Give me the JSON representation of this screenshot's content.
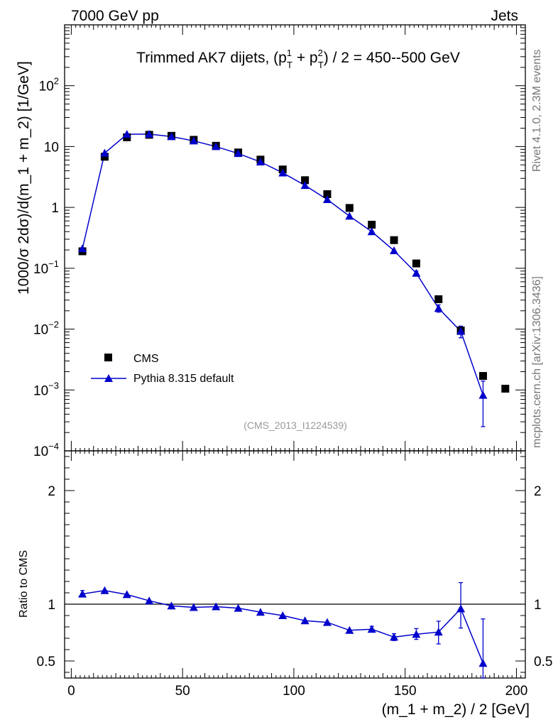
{
  "header": {
    "left": "7000 GeV pp",
    "right": "Jets"
  },
  "side_labels": {
    "rivet": "Rivet 4.1.0,  2.3M events",
    "mcplots": "mcplots.cern.ch [arXiv:1306.3436]"
  },
  "chart_data": [
    {
      "type": "scatter",
      "panel": "main",
      "title_prefix": "Trimmed AK7 dijets, (p",
      "title_middle": " + p",
      "title_suffix": ") / 2 = 450--500 GeV",
      "title_sup1": "1",
      "title_sup2": "2",
      "title_sub": "T",
      "ylabel": "1000/σ  2dσ)/d(m_1 + m_2) [1/GeV]",
      "xlabel": "",
      "yscale": "log",
      "ylim": [
        0.0001,
        1000
      ],
      "xlim": [
        -3,
        204
      ],
      "y_tick_labels": [
        {
          "value": 0.0001,
          "base": "10",
          "exp": "−4"
        },
        {
          "value": 0.001,
          "base": "10",
          "exp": "−3"
        },
        {
          "value": 0.01,
          "base": "10",
          "exp": "−2"
        },
        {
          "value": 0.1,
          "base": "10",
          "exp": "−1"
        },
        {
          "value": 1,
          "base": "1",
          "exp": ""
        },
        {
          "value": 10,
          "base": "10",
          "exp": ""
        },
        {
          "value": 100,
          "base": "10",
          "exp": "2"
        }
      ],
      "watermark": "(CMS_2013_I1224539)",
      "legend": [
        {
          "label": "CMS",
          "marker": "square",
          "color": "#000000"
        },
        {
          "label": "Pythia 8.315 default",
          "marker": "triangle",
          "color": "#0000cc"
        }
      ],
      "series": [
        {
          "name": "CMS",
          "color": "#000000",
          "x": [
            5,
            15,
            25,
            35,
            45,
            55,
            65,
            75,
            85,
            95,
            105,
            115,
            125,
            135,
            145,
            155,
            165,
            175,
            185,
            195
          ],
          "y": [
            0.19,
            6.8,
            14.2,
            15.6,
            15.0,
            12.9,
            10.3,
            8.0,
            6.1,
            4.2,
            2.8,
            1.65,
            0.98,
            0.52,
            0.29,
            0.12,
            0.031,
            0.0095,
            0.0017,
            0.00105
          ]
        },
        {
          "name": "Pythia 8.315 default",
          "color": "#0000cc",
          "x": [
            5,
            15,
            25,
            35,
            45,
            55,
            65,
            75,
            85,
            95,
            105,
            115,
            125,
            135,
            145,
            155,
            165,
            175,
            185
          ],
          "y": [
            0.21,
            7.8,
            15.9,
            16.0,
            14.6,
            12.4,
            10.0,
            7.7,
            5.6,
            3.7,
            2.3,
            1.35,
            0.72,
            0.4,
            0.195,
            0.083,
            0.022,
            0.0092,
            0.00082
          ],
          "err_low": [
            0.2,
            7.5,
            15.6,
            15.7,
            14.3,
            12.1,
            9.8,
            7.5,
            5.45,
            3.6,
            2.23,
            1.3,
            0.69,
            0.38,
            0.183,
            0.076,
            0.019,
            0.0072,
            0.00025
          ],
          "err_high": [
            0.22,
            8.1,
            16.2,
            16.3,
            14.9,
            12.7,
            10.2,
            7.9,
            5.75,
            3.8,
            2.37,
            1.4,
            0.75,
            0.42,
            0.207,
            0.09,
            0.025,
            0.0112,
            0.0014
          ]
        }
      ]
    },
    {
      "type": "line",
      "panel": "ratio",
      "ylabel": "Ratio to CMS",
      "xlabel": "(m_1 + m_2) / 2 [GeV]",
      "ylim": [
        0.35,
        2.35
      ],
      "xlim": [
        -3,
        204
      ],
      "y_ticks": [
        0.5,
        1,
        2
      ],
      "y_tick_labels": [
        "0.5",
        "1",
        "2"
      ],
      "x_ticks": [
        0,
        50,
        100,
        150,
        200
      ],
      "x_tick_labels": [
        "0",
        "50",
        "100",
        "150",
        "200"
      ],
      "reference_line": 1,
      "series": [
        {
          "name": "Pythia 8.315 default",
          "color": "#0000cc",
          "x": [
            5,
            15,
            25,
            35,
            45,
            55,
            65,
            75,
            85,
            95,
            105,
            115,
            125,
            135,
            145,
            155,
            165,
            175,
            185
          ],
          "y": [
            1.09,
            1.12,
            1.085,
            1.03,
            0.985,
            0.972,
            0.978,
            0.965,
            0.93,
            0.9,
            0.855,
            0.84,
            0.77,
            0.78,
            0.71,
            0.735,
            0.755,
            0.96,
            0.48
          ],
          "err_low": [
            1.07,
            1.11,
            1.075,
            1.02,
            0.975,
            0.962,
            0.968,
            0.955,
            0.92,
            0.89,
            0.845,
            0.83,
            0.76,
            0.76,
            0.68,
            0.69,
            0.65,
            0.79,
            0.35
          ],
          "err_high": [
            1.12,
            1.135,
            1.1,
            1.045,
            0.995,
            0.982,
            0.988,
            0.975,
            0.94,
            0.91,
            0.865,
            0.85,
            0.78,
            0.805,
            0.74,
            0.785,
            0.85,
            1.19,
            0.87
          ]
        }
      ]
    }
  ]
}
